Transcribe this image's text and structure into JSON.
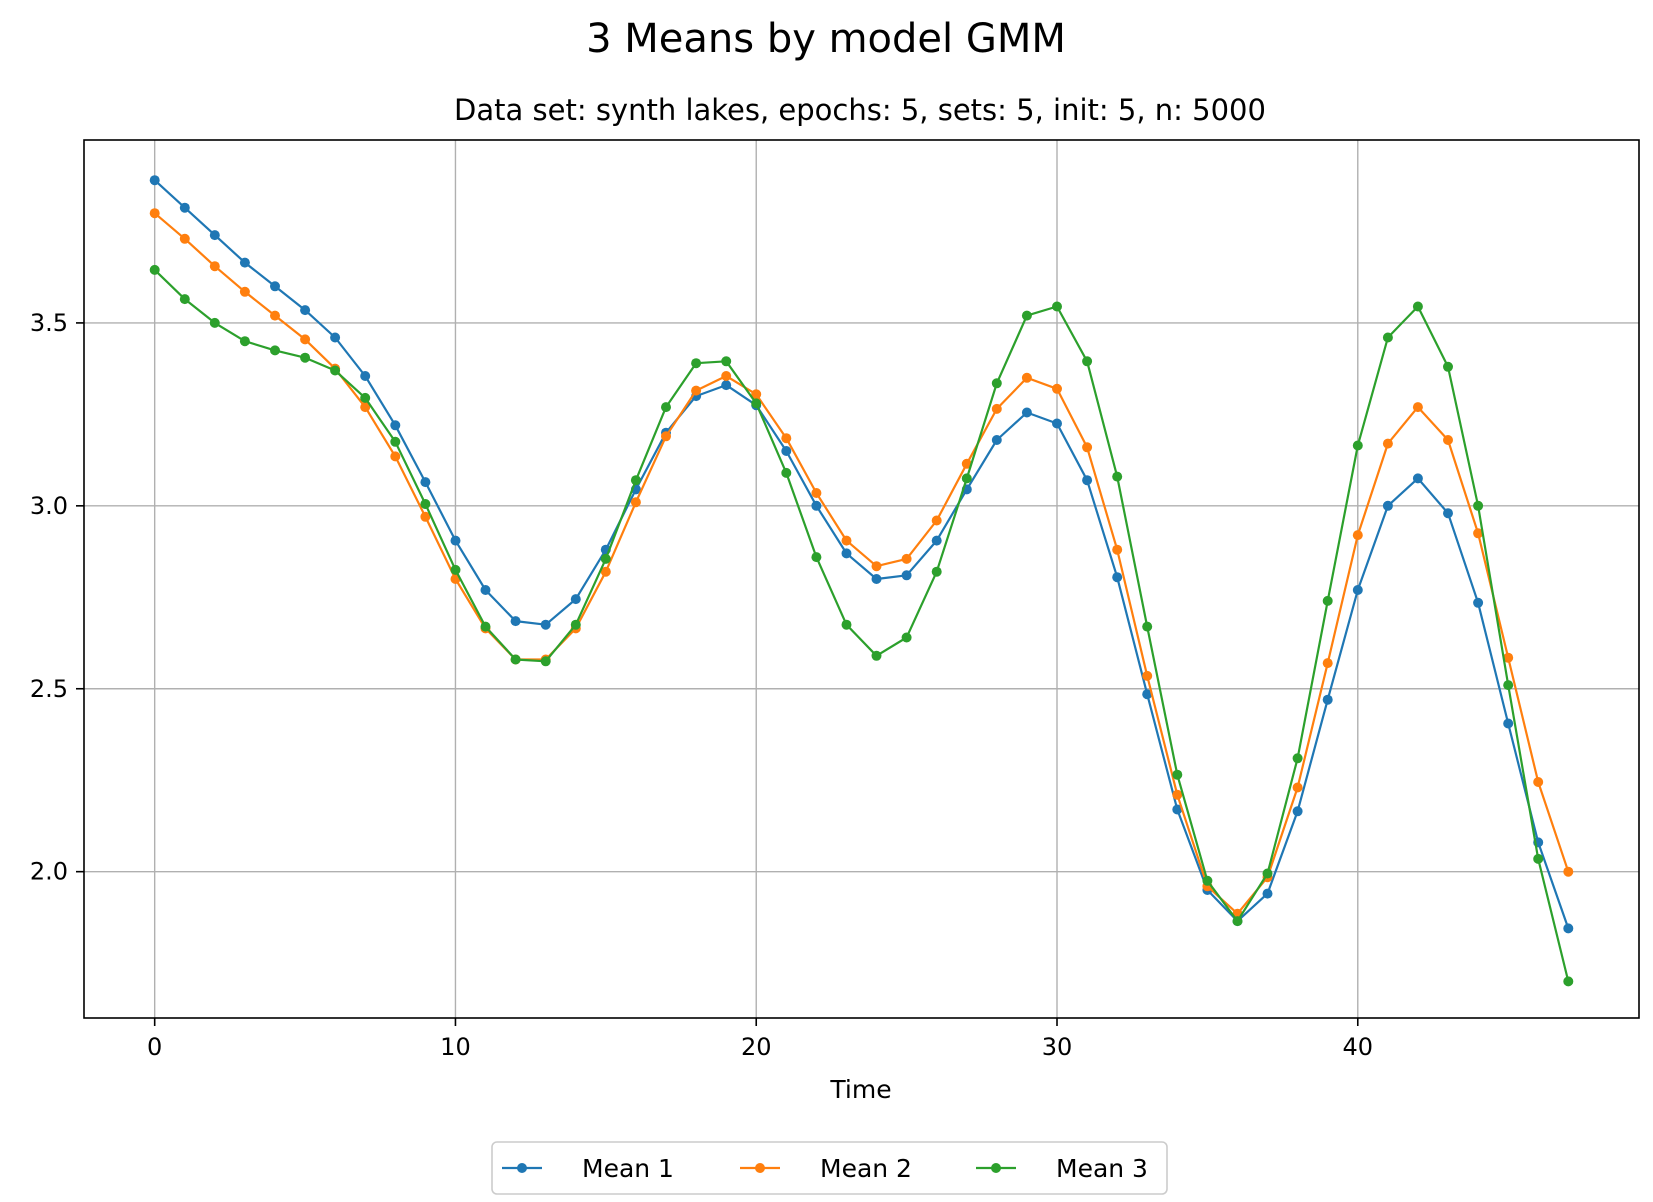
{
  "chart_data": {
    "type": "line",
    "title": "3 Means by model GMM",
    "subtitle": "Data set: synth lakes, epochs: 5, sets: 5, init: 5, n: 5000",
    "xlabel": "Time",
    "ylabel": "",
    "xlim": [
      -2.35,
      49.35
    ],
    "ylim": [
      1.6,
      4.0
    ],
    "xticks": [
      0,
      10,
      20,
      30,
      40
    ],
    "yticks": [
      2.0,
      2.5,
      3.0,
      3.5
    ],
    "grid": true,
    "legend_position": "bottom-center",
    "x": [
      0,
      1,
      2,
      3,
      4,
      5,
      6,
      7,
      8,
      9,
      10,
      11,
      12,
      13,
      14,
      15,
      16,
      17,
      18,
      19,
      20,
      21,
      22,
      23,
      24,
      25,
      26,
      27,
      28,
      29,
      30,
      31,
      32,
      33,
      34,
      35,
      36,
      37,
      38,
      39,
      40,
      41,
      42,
      43,
      44,
      45,
      46,
      47
    ],
    "series": [
      {
        "name": "Mean 1",
        "color": "#1f77b4",
        "values": [
          3.89,
          3.815,
          3.74,
          3.665,
          3.6,
          3.535,
          3.46,
          3.355,
          3.22,
          3.065,
          2.905,
          2.77,
          2.685,
          2.675,
          2.745,
          2.88,
          3.045,
          3.2,
          3.3,
          3.33,
          3.275,
          3.15,
          3.0,
          2.87,
          2.8,
          2.81,
          2.905,
          3.045,
          3.18,
          3.255,
          3.225,
          3.07,
          2.805,
          2.485,
          2.17,
          1.95,
          1.865,
          1.94,
          2.165,
          2.47,
          2.77,
          3.0,
          3.075,
          2.98,
          2.735,
          2.405,
          2.08,
          1.845
        ]
      },
      {
        "name": "Mean 2",
        "color": "#ff7f0e",
        "values": [
          3.8,
          3.73,
          3.655,
          3.585,
          3.52,
          3.455,
          3.375,
          3.27,
          3.135,
          2.97,
          2.8,
          2.665,
          2.58,
          2.58,
          2.665,
          2.82,
          3.01,
          3.19,
          3.315,
          3.355,
          3.305,
          3.185,
          3.035,
          2.905,
          2.835,
          2.855,
          2.96,
          3.115,
          3.265,
          3.35,
          3.32,
          3.16,
          2.88,
          2.535,
          2.21,
          1.96,
          1.885,
          1.985,
          2.23,
          2.57,
          2.92,
          3.17,
          3.27,
          3.18,
          2.925,
          2.585,
          2.245,
          2.0
        ]
      },
      {
        "name": "Mean 3",
        "color": "#2ca02c",
        "values": [
          3.645,
          3.565,
          3.5,
          3.45,
          3.425,
          3.405,
          3.37,
          3.295,
          3.175,
          3.005,
          2.825,
          2.67,
          2.58,
          2.575,
          2.675,
          2.855,
          3.07,
          3.27,
          3.39,
          3.395,
          3.28,
          3.09,
          2.86,
          2.675,
          2.59,
          2.64,
          2.82,
          3.075,
          3.335,
          3.52,
          3.545,
          3.395,
          3.08,
          2.67,
          2.265,
          1.975,
          1.865,
          1.995,
          2.31,
          2.74,
          3.165,
          3.46,
          3.545,
          3.38,
          3.0,
          2.51,
          2.035,
          1.7
        ]
      }
    ]
  }
}
